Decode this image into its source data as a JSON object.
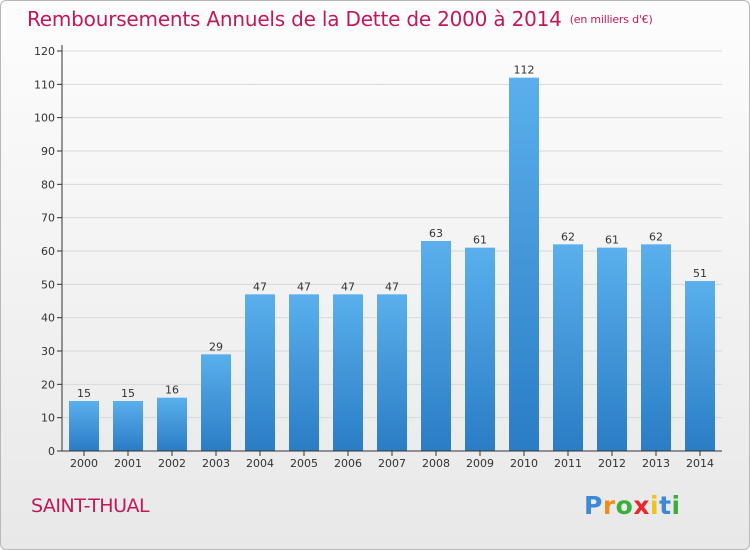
{
  "title": "Remboursements Annuels de la Dette de 2000 à 2014",
  "unit_label": "(en milliers d'€)",
  "commune": "SAINT-THUAL",
  "logo": "Proxiti",
  "colors": {
    "title": "#c2185b",
    "bar_top": "#5aafec",
    "bar_bottom": "#2a7dc4",
    "grid": "#d8d8d8",
    "axis": "#333333"
  },
  "chart_data": {
    "type": "bar",
    "title": "Remboursements Annuels de la Dette de 2000 à 2014",
    "xlabel": "",
    "ylabel": "",
    "categories": [
      "2000",
      "2001",
      "2002",
      "2003",
      "2004",
      "2005",
      "2006",
      "2007",
      "2008",
      "2009",
      "2010",
      "2011",
      "2012",
      "2013",
      "2014"
    ],
    "values": [
      15,
      15,
      16,
      29,
      47,
      47,
      47,
      47,
      63,
      61,
      112,
      62,
      61,
      62,
      51
    ],
    "ylim": [
      0,
      120
    ],
    "yticks": [
      0,
      10,
      20,
      30,
      40,
      50,
      60,
      70,
      80,
      90,
      100,
      110,
      120
    ],
    "grid": true,
    "data_labels": true
  }
}
